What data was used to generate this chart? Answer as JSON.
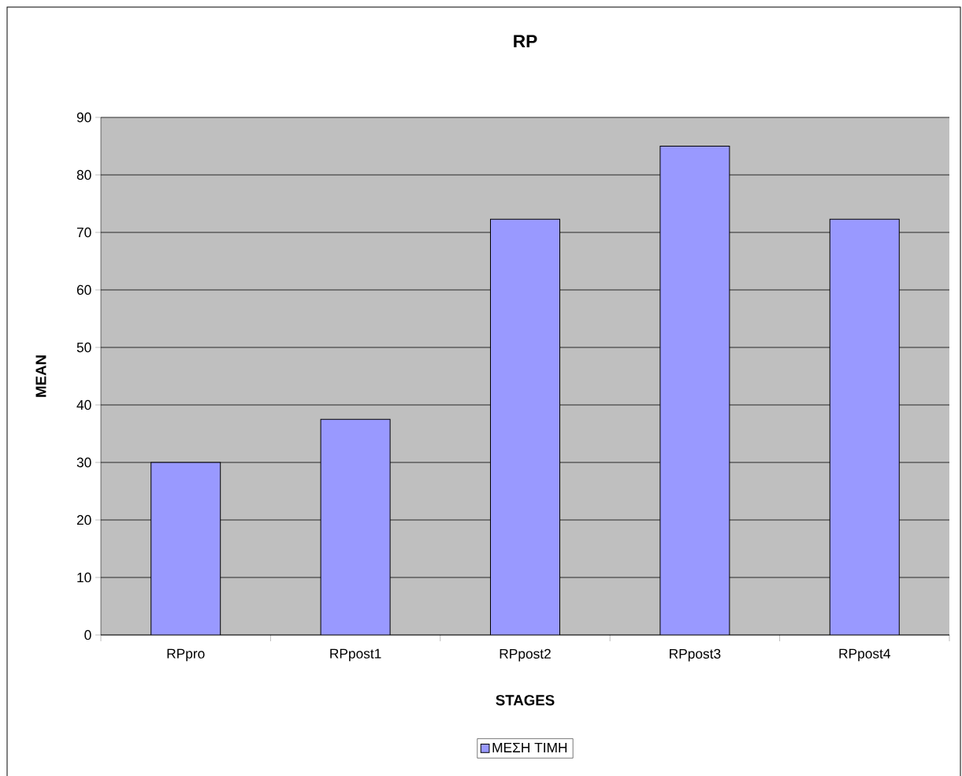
{
  "chart_data": {
    "type": "bar",
    "title": "RP",
    "xlabel": "STAGES",
    "ylabel": "MEAN",
    "categories": [
      "RPpro",
      "RPpost1",
      "RPpost2",
      "RPpost3",
      "RPpost4"
    ],
    "series": [
      {
        "name": "ΜΕΣΗ ΤΙΜΗ",
        "color": "#9999ff",
        "values": [
          30,
          37.5,
          72.3,
          85,
          72.3
        ]
      }
    ],
    "ylim": [
      0,
      90
    ],
    "yticks": [
      0,
      10,
      20,
      30,
      40,
      50,
      60,
      70,
      80,
      90
    ],
    "grid": "y",
    "legend": "bottom"
  }
}
